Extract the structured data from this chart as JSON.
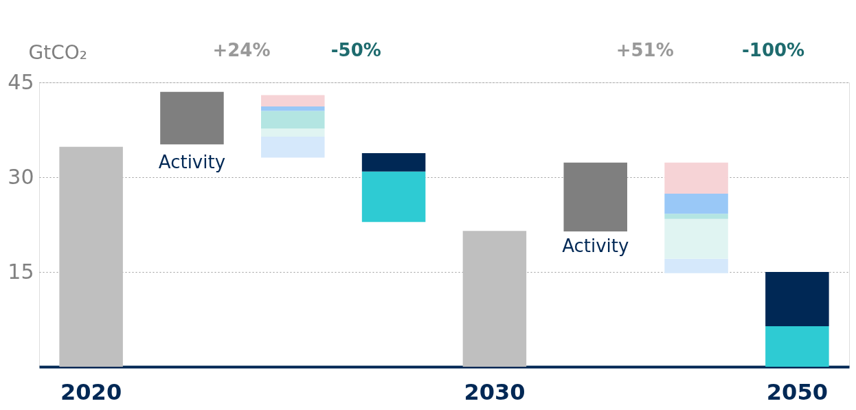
{
  "chart_data": {
    "type": "bar",
    "ylabel": "GtCO₂",
    "categories": [
      "2020",
      null,
      null,
      null,
      "2030",
      null,
      null,
      "2050"
    ],
    "series": [
      {
        "color": "#bfbfbf",
        "values": [
          34.8,
          null,
          null,
          null,
          21.5,
          null,
          null,
          null
        ],
        "base": [
          0,
          null,
          null,
          null,
          0,
          null,
          null,
          null
        ]
      },
      {
        "color": "#7f7f7f",
        "values": [
          null,
          8.3,
          null,
          null,
          null,
          10.9,
          null,
          null
        ],
        "base": [
          null,
          35.2,
          null,
          null,
          null,
          21.4,
          null,
          null
        ]
      },
      {
        "color": "#d5e8fb",
        "values": [
          null,
          null,
          3.3,
          null,
          null,
          null,
          2.3,
          null
        ],
        "base": [
          null,
          null,
          33.1,
          null,
          null,
          null,
          14.8,
          null
        ]
      },
      {
        "color": "#e0f4f2",
        "values": [
          null,
          null,
          1.3,
          null,
          null,
          null,
          6.3,
          null
        ],
        "base": [
          null,
          null,
          36.4,
          null,
          null,
          null,
          17.1,
          null
        ]
      },
      {
        "color": "#b3e5e2",
        "values": [
          null,
          null,
          2.8,
          null,
          null,
          null,
          0.8,
          null
        ],
        "base": [
          null,
          null,
          37.7,
          null,
          null,
          null,
          23.4,
          null
        ]
      },
      {
        "color": "#2ecbd3",
        "values": [
          null,
          null,
          null,
          8.0,
          null,
          null,
          null,
          6.4
        ],
        "base": [
          null,
          null,
          null,
          22.9,
          null,
          null,
          null,
          0
        ]
      },
      {
        "color": "#002855",
        "values": [
          null,
          null,
          null,
          2.9,
          null,
          null,
          null,
          8.6
        ],
        "base": [
          null,
          null,
          null,
          30.9,
          null,
          null,
          null,
          6.4
        ]
      },
      {
        "color": "#99c8f7",
        "values": [
          null,
          null,
          0.7,
          null,
          null,
          null,
          3.2,
          null
        ],
        "base": [
          null,
          null,
          40.5,
          null,
          null,
          null,
          24.2,
          null
        ]
      },
      {
        "color": "#f6d3d6",
        "values": [
          null,
          null,
          1.8,
          null,
          null,
          null,
          4.9,
          null
        ],
        "base": [
          null,
          null,
          41.2,
          null,
          null,
          null,
          27.4,
          null
        ]
      }
    ],
    "ylim": [
      0,
      45
    ],
    "yticks": [
      15,
      30,
      45
    ],
    "grid": "y",
    "legend": false,
    "annotations": [
      "+24%",
      "-50%",
      "+51%",
      "-100%",
      "Activity",
      "Activity"
    ]
  }
}
